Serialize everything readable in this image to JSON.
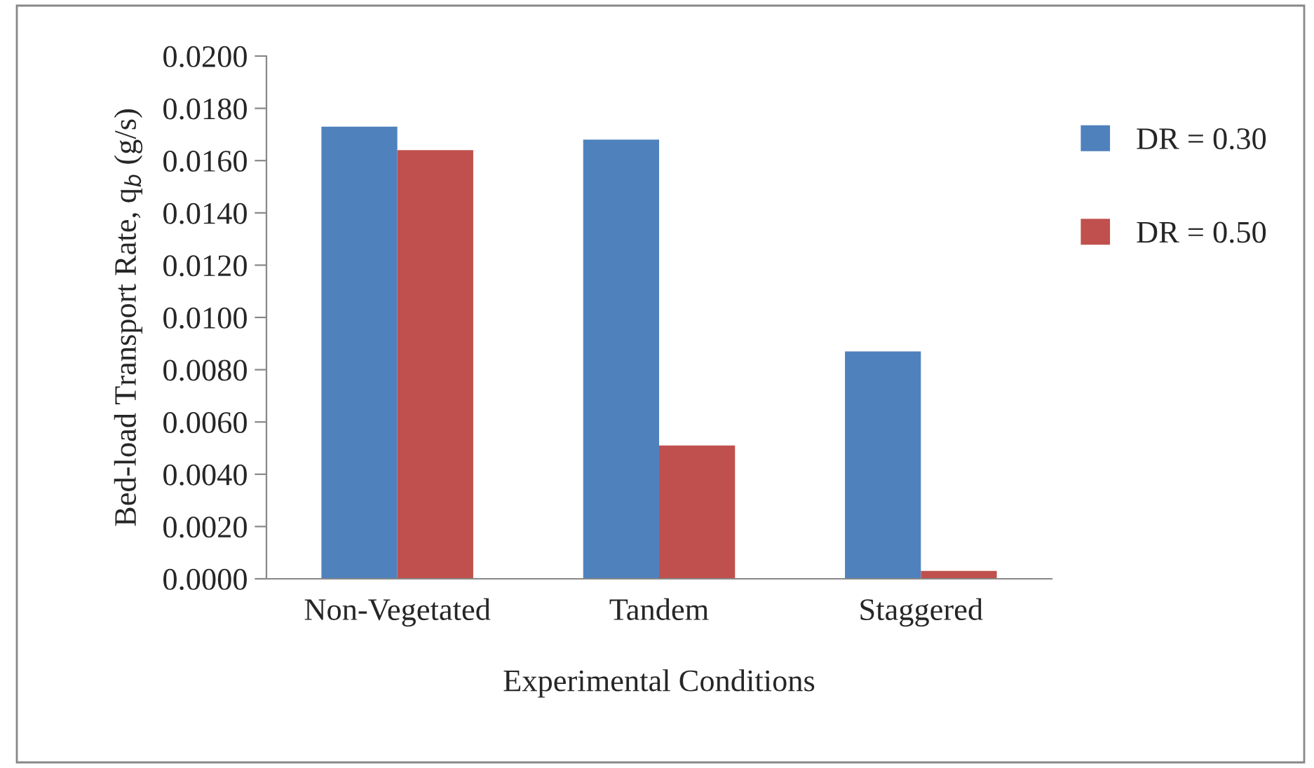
{
  "chart_data": {
    "type": "bar",
    "xlabel": "Experimental Conditions",
    "ylabel": "Bed-load Transport Rate, q$_{b}$ (g/s)",
    "categories": [
      "Non-Vegetated",
      "Tandem",
      "Staggered"
    ],
    "series": [
      {
        "name": "DR = 0.30",
        "color": "#4f81bd",
        "values": [
          0.0173,
          0.0168,
          0.0087
        ]
      },
      {
        "name": "DR = 0.50",
        "color": "#c0504d",
        "values": [
          0.0164,
          0.0051,
          0.0003
        ]
      }
    ],
    "ylim": [
      0,
      0.02
    ],
    "yticks": [
      {
        "value": 0,
        "label": "0.0000"
      },
      {
        "value": 0.002,
        "label": "0.0020"
      },
      {
        "value": 0.004,
        "label": "0.0040"
      },
      {
        "value": 0.006,
        "label": "0.0060"
      },
      {
        "value": 0.008,
        "label": "0.0080"
      },
      {
        "value": 0.01,
        "label": "0.0100"
      },
      {
        "value": 0.012,
        "label": "0.0120"
      },
      {
        "value": 0.014,
        "label": "0.0140"
      },
      {
        "value": 0.016,
        "label": "0.0160"
      },
      {
        "value": 0.018,
        "label": "0.0180"
      },
      {
        "value": 0.02,
        "label": "0.0200"
      }
    ],
    "grid": false,
    "legend": "right"
  }
}
